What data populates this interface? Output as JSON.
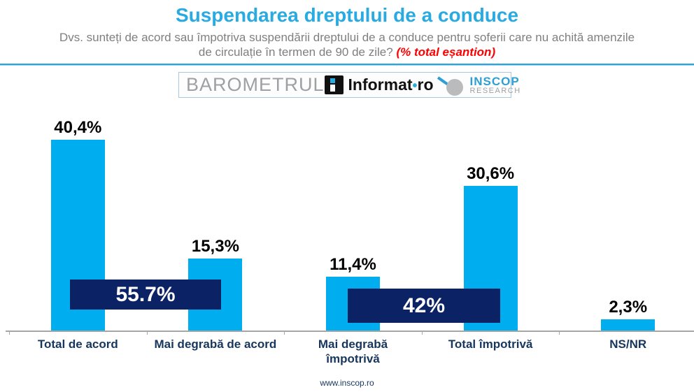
{
  "header": {
    "title": "Suspendarea dreptului de a conduce",
    "subtitle_line1": "Dvs. sunteți de acord sau împotriva suspendării dreptului de a conduce pentru șoferii care nu achită amenzile",
    "subtitle_line2": "de circulație în termen de 90 de zile?",
    "subtitle_highlight": "(% total eșantion)"
  },
  "logos": {
    "barometrul": "BAROMETRUL",
    "informat": {
      "brand": "Informat",
      "dot": "•",
      "tld": "ro"
    },
    "inscop": {
      "name": "INSCOP",
      "sub": "RESEARCH"
    }
  },
  "chart_data": {
    "type": "bar",
    "categories": [
      "Total de acord",
      "Mai degrabă de acord",
      "Mai degrabă\nîmpotrivă",
      "Total împotrivă",
      "NS/NR"
    ],
    "values": [
      40.4,
      15.3,
      11.4,
      30.6,
      2.3
    ],
    "value_labels": [
      "40,4%",
      "15,3%",
      "11,4%",
      "30,6%",
      "2,3%"
    ],
    "groups": [
      {
        "label": "55.7%",
        "covers": [
          "Total de acord",
          "Mai degrabă de acord"
        ]
      },
      {
        "label": "42%",
        "covers": [
          "Mai degrabă împotrivă",
          "Total împotrivă"
        ]
      }
    ],
    "title": "Suspendarea dreptului de a conduce",
    "xlabel": "",
    "ylabel": "",
    "ylim": [
      0,
      45
    ],
    "grid": false,
    "legend": "none",
    "bar_color": "#00AEEF",
    "group_box_color": "#0B2265",
    "accent_color": "#29ABE2",
    "highlight_color": "#FF0000"
  },
  "footer": {
    "url": "www.inscop.ro"
  }
}
